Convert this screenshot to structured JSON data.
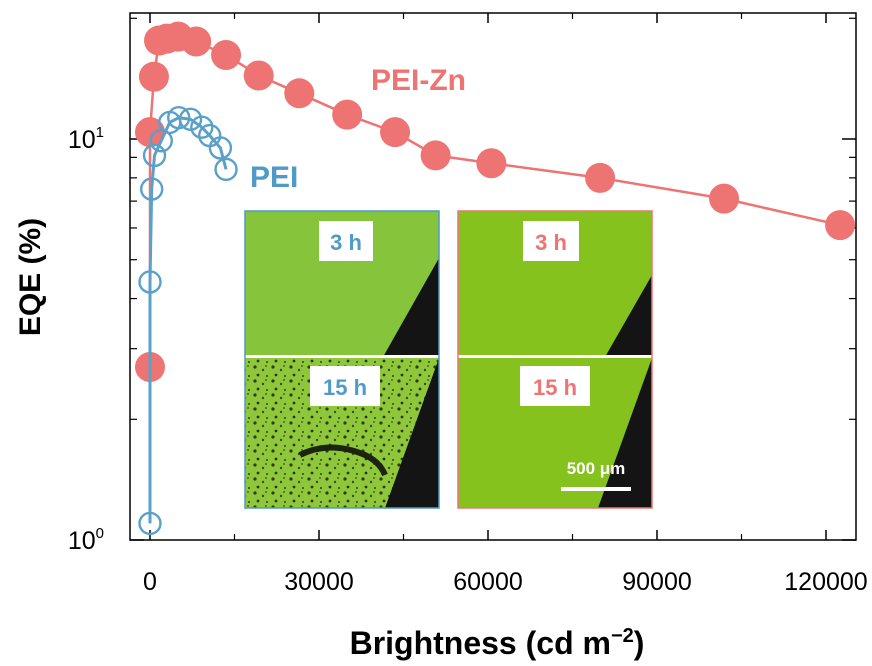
{
  "chart_data": {
    "type": "scatter",
    "xlabel": "Brightness (cd m",
    "xlabel_sup": "−2",
    "xlabel_close": ")",
    "ylabel": "EQE (%)",
    "y_scale": "log",
    "xlim": [
      -8000,
      124000
    ],
    "ylim": [
      1,
      20
    ],
    "x_ticks": [
      0,
      30000,
      60000,
      90000,
      120000
    ],
    "x_tick_labels": [
      "0",
      "30000",
      "60000",
      "90000",
      "120000"
    ],
    "y_tick_labels": [
      {
        "base": "10",
        "exp": "0",
        "value": 1
      },
      {
        "base": "10",
        "exp": "1",
        "value": 10
      }
    ],
    "grid": false,
    "series": [
      {
        "name": "PEI-Zn",
        "color": "#ee7373",
        "marker": "filled-circle",
        "x": [
          0,
          0,
          700,
          1600,
          3000,
          5000,
          8200,
          13500,
          19300,
          26500,
          35000,
          43500,
          50700,
          60600,
          79900,
          101900,
          122500
        ],
        "y": [
          2.7,
          10.4,
          14.3,
          17.6,
          17.8,
          18.0,
          17.5,
          16.2,
          14.4,
          13.0,
          11.5,
          10.4,
          9.1,
          8.7,
          8.0,
          7.1,
          6.1
        ]
      },
      {
        "name": "PEI",
        "color": "#5aa0c8",
        "marker": "open-circle",
        "x": [
          0,
          0,
          300,
          800,
          2000,
          3500,
          5100,
          7200,
          9200,
          10600,
          12500,
          13500
        ],
        "y": [
          1.1,
          4.4,
          7.5,
          9.1,
          9.9,
          11.0,
          11.3,
          11.2,
          10.7,
          10.2,
          9.5,
          8.4
        ]
      }
    ],
    "annotations": [
      "PEI-Zn",
      "PEI"
    ]
  },
  "insets": {
    "pei": {
      "color": "#4f9ac7",
      "top_label": "3 h",
      "bottom_label": "15 h"
    },
    "pei_zn": {
      "color": "#ee7373",
      "top_label": "3 h",
      "bottom_label": "15 h",
      "scale_bar": "500 μm"
    }
  }
}
